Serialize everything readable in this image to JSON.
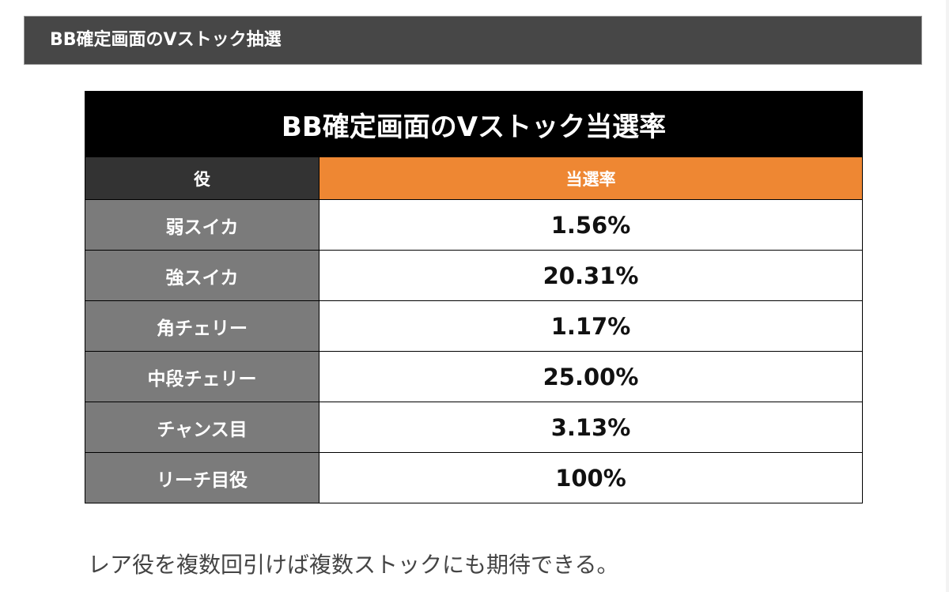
{
  "section": {
    "heading": "BB確定画面のVストック抽選"
  },
  "table": {
    "title": "BB確定画面のVストック当選率",
    "header_role": "役",
    "header_rate": "当選率",
    "rows": [
      {
        "role": "弱スイカ",
        "rate": "1.56%"
      },
      {
        "role": "強スイカ",
        "rate": "20.31%"
      },
      {
        "role": "角チェリー",
        "rate": "1.17%"
      },
      {
        "role": "中段チェリー",
        "rate": "25.00%"
      },
      {
        "role": "チャンス目",
        "rate": "3.13%"
      },
      {
        "role": "リーチ目役",
        "rate": "100%"
      }
    ]
  },
  "note": "レア役を複数回引けば複数ストックにも期待できる。",
  "colors": {
    "header_bg": "#474747",
    "title_bg": "#000000",
    "role_head_bg": "#333333",
    "rate_head_bg": "#ee8733",
    "role_cell_bg": "#7b7b7b"
  }
}
